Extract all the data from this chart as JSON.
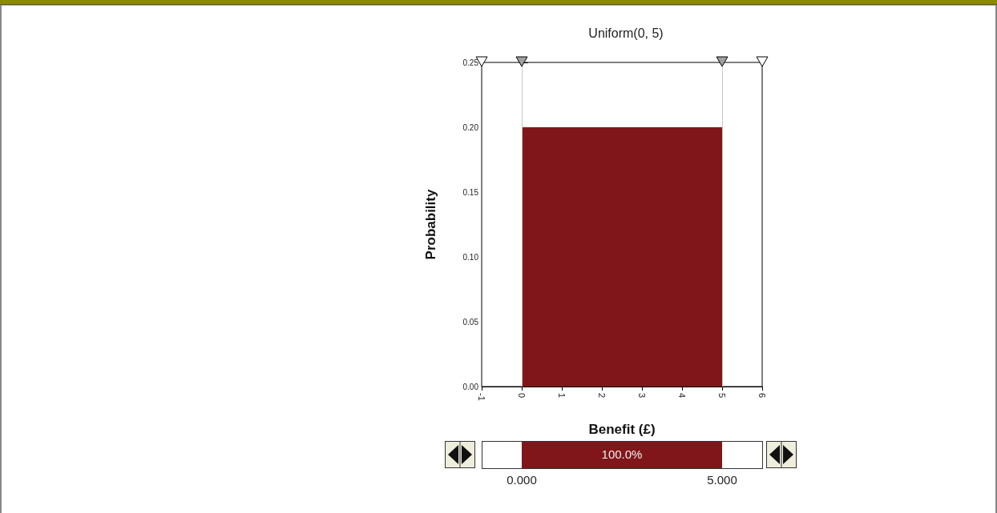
{
  "chart_data": {
    "type": "histogram",
    "title": "Uniform(0, 5)",
    "xlabel": "Benefit (£)",
    "ylabel": "Probability",
    "bins": [
      0,
      5
    ],
    "values": [
      0.2
    ],
    "color": "#80161a",
    "xlim": [
      -1,
      6
    ],
    "xticks": [
      -1,
      0,
      1,
      2,
      3,
      4,
      5,
      6
    ],
    "ylim": [
      0,
      0.25
    ],
    "yticks": [
      {
        "value": 0,
        "label": "0.00"
      },
      {
        "value": 0.05,
        "label": "0.05"
      },
      {
        "value": 0.1,
        "label": "0.10"
      },
      {
        "value": 0.15,
        "label": "0.15"
      },
      {
        "value": 0.2,
        "label": "0.20"
      },
      {
        "value": 0.25,
        "label": "0.25"
      }
    ],
    "ref_lines": [
      {
        "axis": "x",
        "value": 0,
        "color": "#c8c8c8"
      },
      {
        "axis": "x",
        "value": 5,
        "color": "#c8c8c8"
      }
    ],
    "annotations": [
      "100.0%",
      "0.000",
      "5.000"
    ],
    "grid": false
  }
}
